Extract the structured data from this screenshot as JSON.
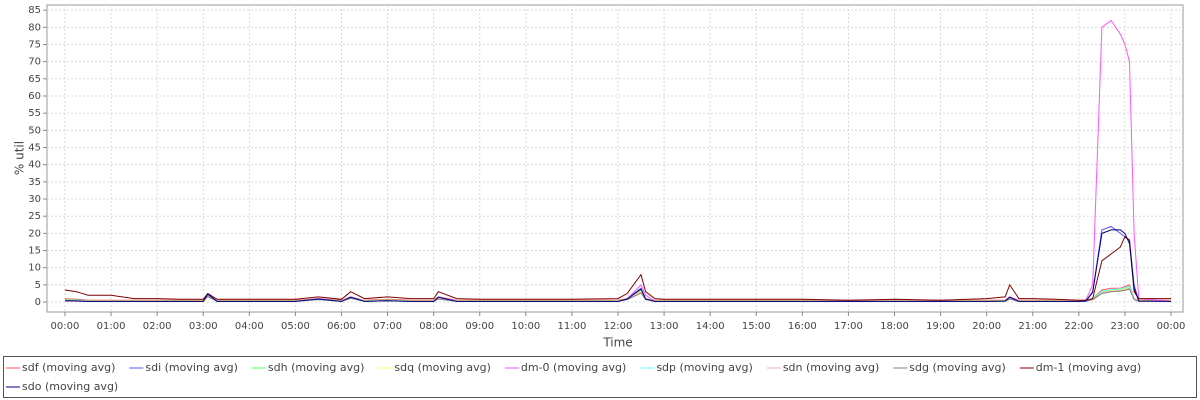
{
  "chart_data": {
    "type": "line",
    "ylabel": "% util",
    "xlabel": "Time",
    "x": [
      0,
      0.25,
      0.5,
      1,
      1.5,
      2,
      2.5,
      3,
      3.1,
      3.3,
      4,
      5,
      5.5,
      6,
      6.2,
      6.5,
      7,
      7.5,
      8,
      8.1,
      8.5,
      9,
      10,
      11,
      12,
      12.2,
      12.5,
      12.6,
      12.8,
      13,
      14,
      15,
      16,
      17,
      18,
      19,
      20,
      20.4,
      20.5,
      20.7,
      21,
      21.5,
      22,
      22.15,
      22.3,
      22.5,
      22.7,
      22.9,
      23,
      23.1,
      23.2,
      23.3,
      24
    ],
    "xlim": [
      -0.39,
      24.26
    ],
    "xticks": [
      {
        "value": 0,
        "label": "00:00"
      },
      {
        "value": 1,
        "label": "01:00"
      },
      {
        "value": 2,
        "label": "02:00"
      },
      {
        "value": 3,
        "label": "03:00"
      },
      {
        "value": 4,
        "label": "04:00"
      },
      {
        "value": 5,
        "label": "05:00"
      },
      {
        "value": 6,
        "label": "06:00"
      },
      {
        "value": 7,
        "label": "07:00"
      },
      {
        "value": 8,
        "label": "08:00"
      },
      {
        "value": 9,
        "label": "09:00"
      },
      {
        "value": 10,
        "label": "10:00"
      },
      {
        "value": 11,
        "label": "11:00"
      },
      {
        "value": 12,
        "label": "12:00"
      },
      {
        "value": 13,
        "label": "13:00"
      },
      {
        "value": 14,
        "label": "14:00"
      },
      {
        "value": 15,
        "label": "15:00"
      },
      {
        "value": 16,
        "label": "16:00"
      },
      {
        "value": 17,
        "label": "17:00"
      },
      {
        "value": 18,
        "label": "18:00"
      },
      {
        "value": 19,
        "label": "19:00"
      },
      {
        "value": 20,
        "label": "20:00"
      },
      {
        "value": 21,
        "label": "21:00"
      },
      {
        "value": 22,
        "label": "22:00"
      },
      {
        "value": 23,
        "label": "23:00"
      },
      {
        "value": 24,
        "label": "00:00"
      }
    ],
    "ylim": [
      -2.9,
      86.5
    ],
    "yticks": [
      0,
      5,
      10,
      15,
      20,
      25,
      30,
      35,
      40,
      45,
      50,
      55,
      60,
      65,
      70,
      75,
      80,
      85
    ],
    "grid": true,
    "legend": "bottom",
    "series": [
      {
        "name": "sdf (moving avg)",
        "color": "#ff5555",
        "values": [
          1,
          0.8,
          0.5,
          0.5,
          0.5,
          0.5,
          0.5,
          0.5,
          2,
          0.5,
          0.5,
          0.5,
          1,
          0.5,
          1.5,
          0.5,
          0.8,
          0.5,
          0.5,
          1.5,
          0.5,
          0.5,
          0.5,
          0.5,
          0.5,
          1,
          3,
          1,
          0.5,
          0.5,
          0.5,
          0.5,
          0.5,
          0.5,
          0.5,
          0.5,
          0.5,
          0.5,
          1.5,
          0.5,
          0.5,
          0.5,
          0.5,
          0.5,
          1,
          3.5,
          4,
          4,
          4.5,
          5,
          1,
          0.5,
          0.5
        ]
      },
      {
        "name": "sdi (moving avg)",
        "color": "#5555ff",
        "values": [
          0.5,
          0.3,
          0.2,
          0.2,
          0.2,
          0.2,
          0.2,
          0.2,
          2.5,
          0.2,
          0.2,
          0.2,
          1,
          0.2,
          1.5,
          0.2,
          0.5,
          0.2,
          0.2,
          1.5,
          0.2,
          0.2,
          0.2,
          0.2,
          0.2,
          1,
          4,
          1,
          0.2,
          0.2,
          0.2,
          0.2,
          0.2,
          0.2,
          0.2,
          0.2,
          0.2,
          0.3,
          1.5,
          0.2,
          0.2,
          0.2,
          0.2,
          0.3,
          3,
          21,
          22,
          20,
          19,
          18,
          5,
          0.3,
          0.2
        ]
      },
      {
        "name": "sdh (moving avg)",
        "color": "#55ff55",
        "values": [
          0.8,
          0.6,
          0.4,
          0.4,
          0.4,
          0.4,
          0.4,
          0.4,
          2,
          0.4,
          0.4,
          0.4,
          1,
          0.4,
          1.5,
          0.4,
          0.6,
          0.4,
          0.4,
          1.2,
          0.4,
          0.4,
          0.4,
          0.4,
          0.4,
          1,
          3.5,
          1,
          0.4,
          0.4,
          0.4,
          0.4,
          0.4,
          0.4,
          0.4,
          0.4,
          0.4,
          0.4,
          1.2,
          0.4,
          0.4,
          0.4,
          0.4,
          0.4,
          1,
          3,
          3.5,
          3.8,
          4,
          4.5,
          1,
          0.4,
          0.4
        ]
      },
      {
        "name": "sdq (moving avg)",
        "color": "#ffff55",
        "values": [
          0.7,
          0.5,
          0.4,
          0.4,
          0.4,
          0.4,
          0.4,
          0.4,
          1.8,
          0.4,
          0.4,
          0.4,
          0.9,
          0.4,
          1.4,
          0.4,
          0.5,
          0.4,
          0.4,
          1.1,
          0.4,
          0.4,
          0.4,
          0.4,
          0.4,
          0.9,
          3,
          0.9,
          0.4,
          0.4,
          0.4,
          0.4,
          0.4,
          0.4,
          0.4,
          0.4,
          0.4,
          0.4,
          1.1,
          0.4,
          0.4,
          0.4,
          0.4,
          0.4,
          0.9,
          2.8,
          3.3,
          3.6,
          3.8,
          4.2,
          0.9,
          0.4,
          0.4
        ]
      },
      {
        "name": "dm-0 (moving avg)",
        "color": "#ff55ff",
        "values": [
          0.3,
          0.3,
          0.3,
          0.3,
          0.3,
          0.3,
          0.3,
          0.3,
          2,
          0.3,
          0.3,
          0.3,
          1,
          0.3,
          1.5,
          0.3,
          0.3,
          0.3,
          0.3,
          1.5,
          0.3,
          0.3,
          0.3,
          0.3,
          0.3,
          1,
          5,
          2,
          0.3,
          0.3,
          0.3,
          0.3,
          0.3,
          0.3,
          0.3,
          0.3,
          0.3,
          0.3,
          1.5,
          0.3,
          0.3,
          0.3,
          0.3,
          0.5,
          5,
          80,
          82,
          78,
          75,
          70,
          20,
          1,
          0.3
        ]
      },
      {
        "name": "sdp (moving avg)",
        "color": "#55ffff",
        "values": [
          0.6,
          0.5,
          0.3,
          0.3,
          0.3,
          0.3,
          0.3,
          0.3,
          2.2,
          0.3,
          0.3,
          0.3,
          0.8,
          0.3,
          1.3,
          0.3,
          0.5,
          0.3,
          0.3,
          1,
          0.3,
          0.3,
          0.3,
          0.3,
          0.3,
          0.8,
          3.8,
          0.8,
          0.3,
          0.3,
          0.3,
          0.3,
          0.3,
          0.3,
          0.3,
          0.3,
          0.3,
          0.3,
          1,
          0.3,
          0.3,
          0.3,
          0.3,
          0.3,
          0.8,
          3.2,
          3.6,
          3.9,
          4.1,
          4.6,
          0.8,
          0.3,
          0.3
        ]
      },
      {
        "name": "sdn (moving avg)",
        "color": "#ffafaf",
        "values": [
          0.6,
          0.4,
          0.3,
          0.3,
          0.3,
          0.3,
          0.3,
          0.3,
          1.7,
          0.3,
          0.3,
          0.3,
          0.8,
          0.3,
          1.2,
          0.3,
          0.4,
          0.3,
          0.3,
          1,
          0.3,
          0.3,
          0.3,
          0.3,
          0.3,
          0.8,
          2.8,
          0.8,
          0.3,
          0.3,
          0.3,
          0.3,
          0.3,
          0.3,
          0.3,
          0.3,
          0.3,
          0.3,
          1,
          0.3,
          0.3,
          0.3,
          0.3,
          0.3,
          0.8,
          2.7,
          3.1,
          3.4,
          3.6,
          4,
          0.8,
          0.3,
          0.3
        ]
      },
      {
        "name": "sdg (moving avg)",
        "color": "#808080",
        "values": [
          0.5,
          0.4,
          0.2,
          0.2,
          0.2,
          0.2,
          0.2,
          0.2,
          1.6,
          0.2,
          0.2,
          0.2,
          0.7,
          0.2,
          1.1,
          0.2,
          0.4,
          0.2,
          0.2,
          0.9,
          0.2,
          0.2,
          0.2,
          0.2,
          0.2,
          0.7,
          2.6,
          0.7,
          0.2,
          0.2,
          0.2,
          0.2,
          0.2,
          0.2,
          0.2,
          0.2,
          0.2,
          0.2,
          0.9,
          0.2,
          0.2,
          0.2,
          0.2,
          0.2,
          0.7,
          2.5,
          3,
          3.2,
          3.4,
          3.8,
          0.7,
          0.2,
          0.2
        ]
      },
      {
        "name": "dm-1 (moving avg)",
        "color": "#800000",
        "values": [
          3.5,
          3,
          2,
          2,
          1,
          1,
          0.8,
          0.8,
          2.5,
          0.8,
          0.8,
          0.8,
          1.5,
          0.8,
          3,
          1,
          1.5,
          1,
          1,
          3,
          1,
          0.8,
          0.8,
          0.8,
          1,
          2.5,
          8,
          3,
          1,
          0.8,
          0.8,
          0.8,
          0.8,
          0.5,
          0.8,
          0.5,
          1,
          1.5,
          5,
          1,
          1,
          0.8,
          0.5,
          0.5,
          1,
          12,
          14,
          16,
          19,
          18,
          3,
          1,
          1
        ]
      },
      {
        "name": "sdo (moving avg)",
        "color": "#000080",
        "values": [
          0.4,
          0.3,
          0.2,
          0.2,
          0.2,
          0.2,
          0.2,
          0.2,
          2.3,
          0.2,
          0.2,
          0.2,
          0.9,
          0.2,
          1.4,
          0.2,
          0.4,
          0.2,
          0.2,
          1.4,
          0.2,
          0.2,
          0.2,
          0.2,
          0.2,
          0.9,
          3.8,
          0.9,
          0.2,
          0.2,
          0.2,
          0.2,
          0.2,
          0.2,
          0.2,
          0.2,
          0.2,
          0.3,
          1.4,
          0.2,
          0.2,
          0.2,
          0.2,
          0.3,
          2.8,
          20,
          21,
          21,
          20,
          17,
          4,
          0.3,
          0.2
        ]
      }
    ]
  }
}
